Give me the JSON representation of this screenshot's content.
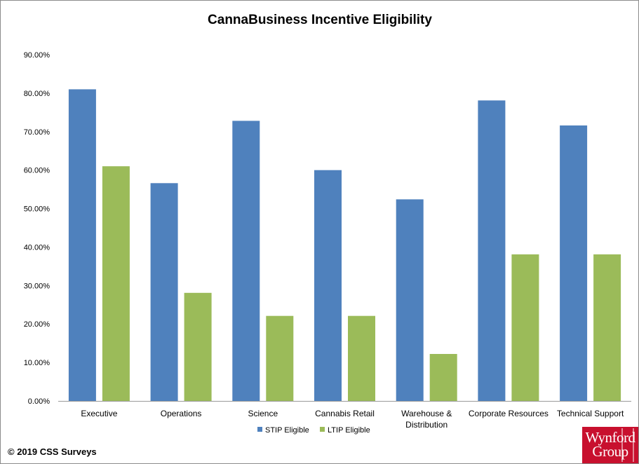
{
  "chart_data": {
    "type": "bar",
    "title": "CannaBusiness Incentive Eligibility",
    "categories": [
      "Executive",
      "Operations",
      "Science",
      "Cannabis Retail",
      [
        "Warehouse &",
        "Distribution"
      ],
      "Corporate Resources",
      "Technical Support"
    ],
    "series": [
      {
        "name": "STIP Eligible",
        "color": "#4f81bd",
        "values": [
          81.0,
          56.6,
          72.8,
          60.0,
          52.4,
          78.1,
          71.6
        ]
      },
      {
        "name": "LTIP Eligible",
        "color": "#9bbb59",
        "values": [
          61.0,
          28.1,
          22.1,
          22.1,
          12.2,
          38.1,
          38.1
        ]
      }
    ],
    "ylim": [
      0,
      90
    ],
    "yticks": [
      0,
      10,
      20,
      30,
      40,
      50,
      60,
      70,
      80,
      90
    ],
    "ytick_labels": [
      "0.00%",
      "10.00%",
      "20.00%",
      "30.00%",
      "40.00%",
      "50.00%",
      "60.00%",
      "70.00%",
      "80.00%",
      "90.00%"
    ],
    "grid": false,
    "legend_position": "bottom"
  },
  "footer": {
    "copyright": "© 2019 CSS Surveys",
    "logo_line1": "Wynford",
    "logo_line2": "Group"
  }
}
